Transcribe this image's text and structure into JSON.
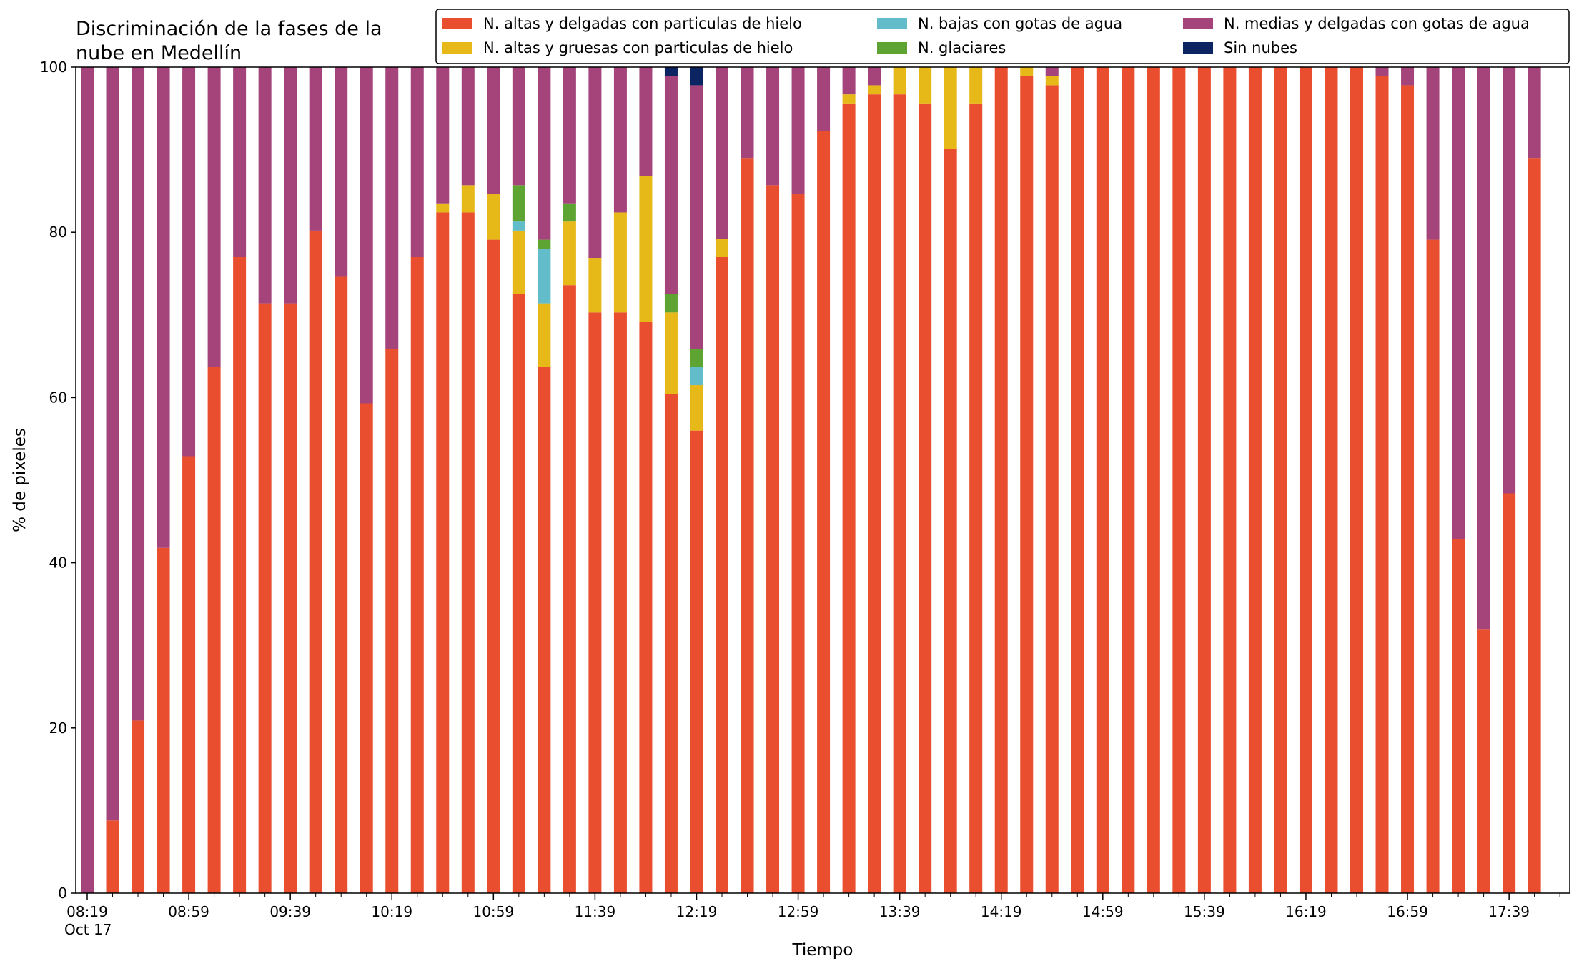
{
  "chart_data": {
    "type": "bar",
    "stacked": true,
    "title_lines": [
      "Discriminación de la fases de la",
      "nube en Medellín"
    ],
    "xlabel": "Tiempo",
    "ylabel": "% de pixeles",
    "ylim": [
      0,
      100
    ],
    "yticks": [
      0,
      20,
      40,
      60,
      80,
      100
    ],
    "x_start": "08:19",
    "x_interval_minutes": 10,
    "x_tick_labels": [
      "08:19",
      "08:59",
      "09:39",
      "10:19",
      "10:59",
      "11:39",
      "12:19",
      "12:59",
      "13:39",
      "14:19",
      "14:59",
      "15:39",
      "16:19",
      "16:59",
      "17:39"
    ],
    "x_date_label": "Oct 17",
    "grid": false,
    "legend_position": "top-right",
    "series": [
      {
        "name": "N. altas y delgadas con particulas de hielo",
        "color": "#e94e2e",
        "values": [
          0,
          8.8,
          20.9,
          41.8,
          52.9,
          63.7,
          77.0,
          71.4,
          71.4,
          80.2,
          74.7,
          59.3,
          65.9,
          77.0,
          82.4,
          82.4,
          79.1,
          72.5,
          63.7,
          73.6,
          70.3,
          70.3,
          69.2,
          60.4,
          56.0,
          77.0,
          89.0,
          85.7,
          84.6,
          92.3,
          95.6,
          96.7,
          96.7,
          95.6,
          90.1,
          95.6,
          100,
          98.9,
          97.8,
          100,
          100,
          100,
          100,
          100,
          100,
          100,
          100,
          100,
          100,
          100,
          100,
          98.9,
          97.8,
          79.1,
          42.9,
          31.9,
          48.4,
          89.0
        ]
      },
      {
        "name": "N. altas y gruesas con particulas de hielo",
        "color": "#e6b818",
        "values": [
          0,
          0,
          0,
          0,
          0,
          0,
          0,
          0,
          0,
          0,
          0,
          0,
          0,
          0,
          1.1,
          3.3,
          5.5,
          7.7,
          7.7,
          7.7,
          6.6,
          12.1,
          17.6,
          9.9,
          5.5,
          2.2,
          0,
          0,
          0,
          0,
          1.1,
          1.1,
          3.3,
          4.4,
          9.9,
          4.4,
          0,
          1.1,
          1.1,
          0,
          0,
          0,
          0,
          0,
          0,
          0,
          0,
          0,
          0,
          0,
          0,
          0,
          0,
          0,
          0,
          0,
          0,
          0
        ]
      },
      {
        "name": "N. bajas con gotas de agua",
        "color": "#63bcc9",
        "values": [
          0,
          0,
          0,
          0,
          0,
          0,
          0,
          0,
          0,
          0,
          0,
          0,
          0,
          0,
          0,
          0,
          0,
          1.1,
          6.6,
          0,
          0,
          0,
          0,
          0,
          2.2,
          0,
          0,
          0,
          0,
          0,
          0,
          0,
          0,
          0,
          0,
          0,
          0,
          0,
          0,
          0,
          0,
          0,
          0,
          0,
          0,
          0,
          0,
          0,
          0,
          0,
          0,
          0,
          0,
          0,
          0,
          0,
          0,
          0
        ]
      },
      {
        "name": "N. glaciares",
        "color": "#5ea432",
        "values": [
          0,
          0,
          0,
          0,
          0,
          0,
          0,
          0,
          0,
          0,
          0,
          0,
          0,
          0,
          0,
          0,
          0,
          4.4,
          1.1,
          2.2,
          0,
          0,
          0,
          2.2,
          2.2,
          0,
          0,
          0,
          0,
          0,
          0,
          0,
          0,
          0,
          0,
          0,
          0,
          0,
          0,
          0,
          0,
          0,
          0,
          0,
          0,
          0,
          0,
          0,
          0,
          0,
          0,
          0,
          0,
          0,
          0,
          0,
          0,
          0
        ]
      },
      {
        "name": "N. medias y delgadas con gotas de agua",
        "color": "#a4447b",
        "values": [
          100,
          91.2,
          79.1,
          58.2,
          47.1,
          36.3,
          23.0,
          28.6,
          28.6,
          19.8,
          25.3,
          40.7,
          34.1,
          23.0,
          16.5,
          14.3,
          15.4,
          14.3,
          20.9,
          16.5,
          23.1,
          17.6,
          13.2,
          26.4,
          31.9,
          20.8,
          11.0,
          14.3,
          15.4,
          7.7,
          3.3,
          2.2,
          0,
          0,
          0,
          0,
          0,
          0,
          1.1,
          0,
          0,
          0,
          0,
          0,
          0,
          0,
          0,
          0,
          0,
          0,
          0,
          1.1,
          2.2,
          20.9,
          57.1,
          68.1,
          51.6,
          11.0
        ]
      },
      {
        "name": "Sin nubes",
        "color": "#0c2461",
        "values": [
          0,
          0,
          0,
          0,
          0,
          0,
          0,
          0,
          0,
          0,
          0,
          0,
          0,
          0,
          0,
          0,
          0,
          0,
          0,
          0,
          0,
          0,
          0,
          1.1,
          2.2,
          0,
          0,
          0,
          0,
          0,
          0,
          0,
          0,
          0,
          0,
          0,
          0,
          0,
          0,
          0,
          0,
          0,
          0,
          0,
          0,
          0,
          0,
          0,
          0,
          0,
          0,
          0,
          0,
          0,
          0,
          0,
          0,
          0
        ]
      }
    ]
  }
}
